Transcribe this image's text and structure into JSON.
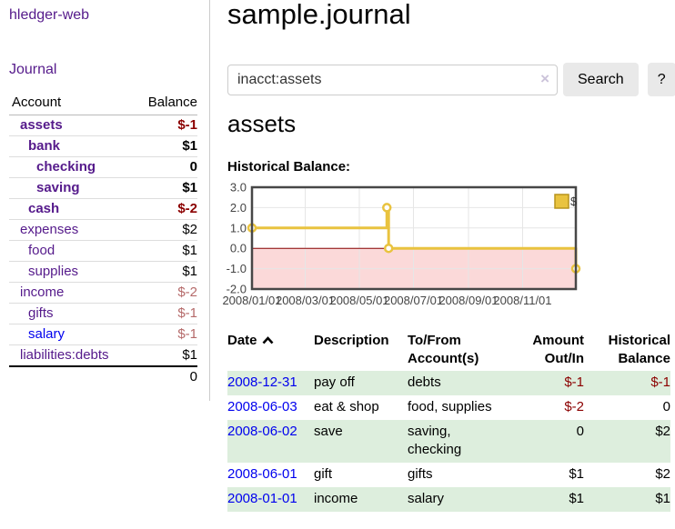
{
  "sidebar": {
    "brand": "hledger-web",
    "nav_journal": "Journal",
    "columns": {
      "account": "Account",
      "balance": "Balance"
    },
    "accounts": [
      {
        "name": "assets",
        "depth": 0,
        "bold": true,
        "balance": "$-1",
        "balance_style": "neg-strong"
      },
      {
        "name": "bank",
        "depth": 1,
        "bold": true,
        "balance": "$1",
        "balance_style": ""
      },
      {
        "name": "checking",
        "depth": 2,
        "bold": true,
        "balance": "0",
        "balance_style": ""
      },
      {
        "name": "saving",
        "depth": 2,
        "bold": true,
        "balance": "$1",
        "balance_style": ""
      },
      {
        "name": "cash",
        "depth": 1,
        "bold": true,
        "balance": "$-2",
        "balance_style": "neg-strong"
      },
      {
        "name": "expenses",
        "depth": 0,
        "bold": false,
        "balance": "$2",
        "balance_style": ""
      },
      {
        "name": "food",
        "depth": 1,
        "bold": false,
        "balance": "$1",
        "balance_style": ""
      },
      {
        "name": "supplies",
        "depth": 1,
        "bold": false,
        "balance": "$1",
        "balance_style": ""
      },
      {
        "name": "income",
        "depth": 0,
        "bold": false,
        "balance": "$-2",
        "balance_style": "neg-muted"
      },
      {
        "name": "gifts",
        "depth": 1,
        "bold": false,
        "balance": "$-1",
        "balance_style": "neg-muted"
      },
      {
        "name": "salary",
        "depth": 1,
        "bold": false,
        "link_color": "blue",
        "balance": "$-1",
        "balance_style": "neg-muted"
      },
      {
        "name": "liabilities:debts",
        "depth": 0,
        "bold": false,
        "balance": "$1",
        "balance_style": ""
      }
    ],
    "total": "0"
  },
  "header": {
    "title": "sample.journal"
  },
  "search": {
    "value": "inacct:assets",
    "clear_label": "×",
    "button_label": "Search",
    "help_label": "?"
  },
  "account_page": {
    "heading": "assets",
    "chart_label": "Historical Balance:"
  },
  "chart_data": {
    "type": "line",
    "step": true,
    "title": "Historical Balance",
    "legend": [
      {
        "label": "$",
        "color": "#E9C33F"
      }
    ],
    "legend_position": "top-right",
    "series": [
      {
        "name": "$",
        "color": "#E9C33F",
        "points": [
          {
            "date": "2008-01-01",
            "day": 0,
            "value": 1
          },
          {
            "date": "2008-06-01",
            "day": 152,
            "value": 2
          },
          {
            "date": "2008-06-03",
            "day": 154,
            "value": 0
          },
          {
            "date": "2008-12-31",
            "day": 365,
            "value": -1
          }
        ]
      }
    ],
    "x_ticks": [
      {
        "day": 0,
        "label": "2008/01/01"
      },
      {
        "day": 60,
        "label": "2008/03/01"
      },
      {
        "day": 121,
        "label": "2008/05/01"
      },
      {
        "day": 182,
        "label": "2008/07/01"
      },
      {
        "day": 244,
        "label": "2008/09/01"
      },
      {
        "day": 305,
        "label": "2008/11/01"
      }
    ],
    "y_ticks": [
      {
        "value": 3,
        "label": "3.0"
      },
      {
        "value": 2,
        "label": "2.0"
      },
      {
        "value": 1,
        "label": "1.0"
      },
      {
        "value": 0,
        "label": "0.0"
      },
      {
        "value": -1,
        "label": "-1.0"
      },
      {
        "value": -2,
        "label": "-2.0"
      }
    ],
    "xlim_days": [
      0,
      365
    ],
    "ylim": [
      -2,
      3
    ],
    "grid": true,
    "grid_color": "#e6e6e6",
    "border_color": "#474747",
    "negative_region_color": "#fbd9d9",
    "zero_line_color": "#8b0000"
  },
  "register": {
    "columns": [
      {
        "label": "Date",
        "sort": "asc"
      },
      {
        "label": "Description"
      },
      {
        "label": "To/From Account(s)"
      },
      {
        "label": "Amount Out/In"
      },
      {
        "label": "Historical Balance"
      }
    ],
    "rows": [
      {
        "date": "2008-12-31",
        "description": "pay off",
        "accounts": "debts",
        "amount": "$-1",
        "balance": "$-1"
      },
      {
        "date": "2008-06-03",
        "description": "eat & shop",
        "accounts": "food, supplies",
        "amount": "$-2",
        "balance": "0"
      },
      {
        "date": "2008-06-02",
        "description": "save",
        "accounts": "saving, checking",
        "amount": "0",
        "balance": "$2"
      },
      {
        "date": "2008-06-01",
        "description": "gift",
        "accounts": "gifts",
        "amount": "$1",
        "balance": "$2"
      },
      {
        "date": "2008-01-01",
        "description": "income",
        "accounts": "salary",
        "amount": "$1",
        "balance": "$1"
      }
    ]
  }
}
